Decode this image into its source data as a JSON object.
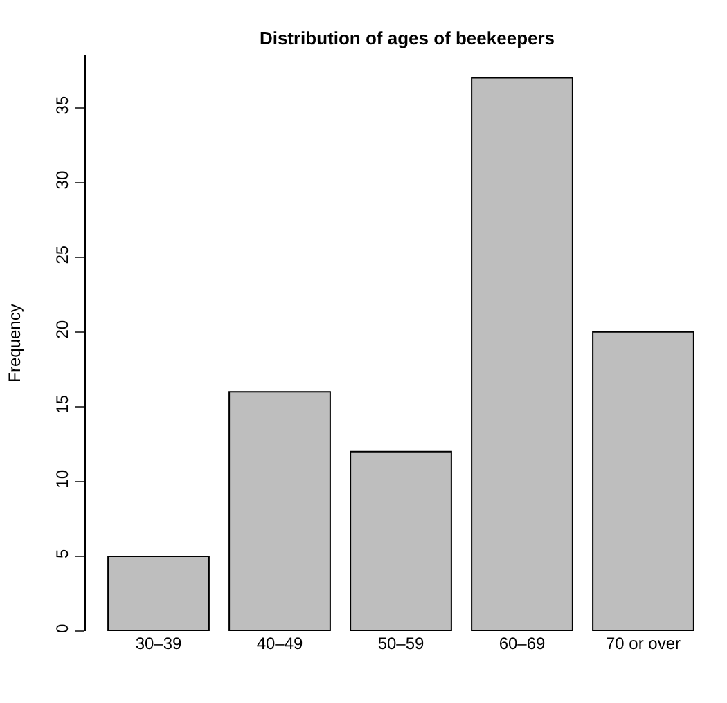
{
  "chart_data": {
    "type": "bar",
    "title": "Distribution of ages of beekeepers",
    "ylabel": "Frequency",
    "categories": [
      "30–39",
      "40–49",
      "50–59",
      "60–69",
      "70 or over"
    ],
    "values": [
      5,
      16,
      12,
      37,
      20
    ],
    "color": "#bebebe",
    "ylim": [
      0,
      38.5
    ],
    "yticks": [
      0,
      5,
      10,
      15,
      20,
      25,
      30,
      35
    ],
    "grid": false
  }
}
